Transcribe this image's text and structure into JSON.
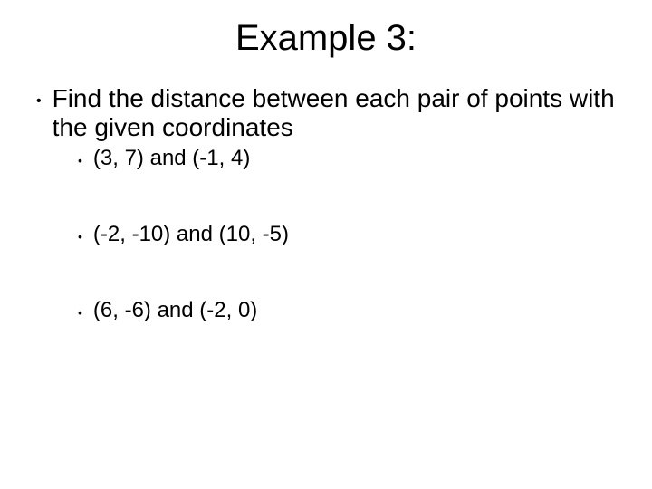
{
  "title": "Example 3:",
  "prompt": "Find the distance between each pair of points with the given coordinates",
  "items": [
    "(3, 7) and (-1, 4)",
    "(-2, -10) and (10, -5)",
    "(6, -6) and (-2, 0)"
  ],
  "colors": {
    "background": "#ffffff",
    "text": "#000000"
  },
  "typography": {
    "title_fontsize": 40,
    "body_fontsize": 28,
    "sub_fontsize": 24,
    "font_family": "Comic Sans MS"
  }
}
